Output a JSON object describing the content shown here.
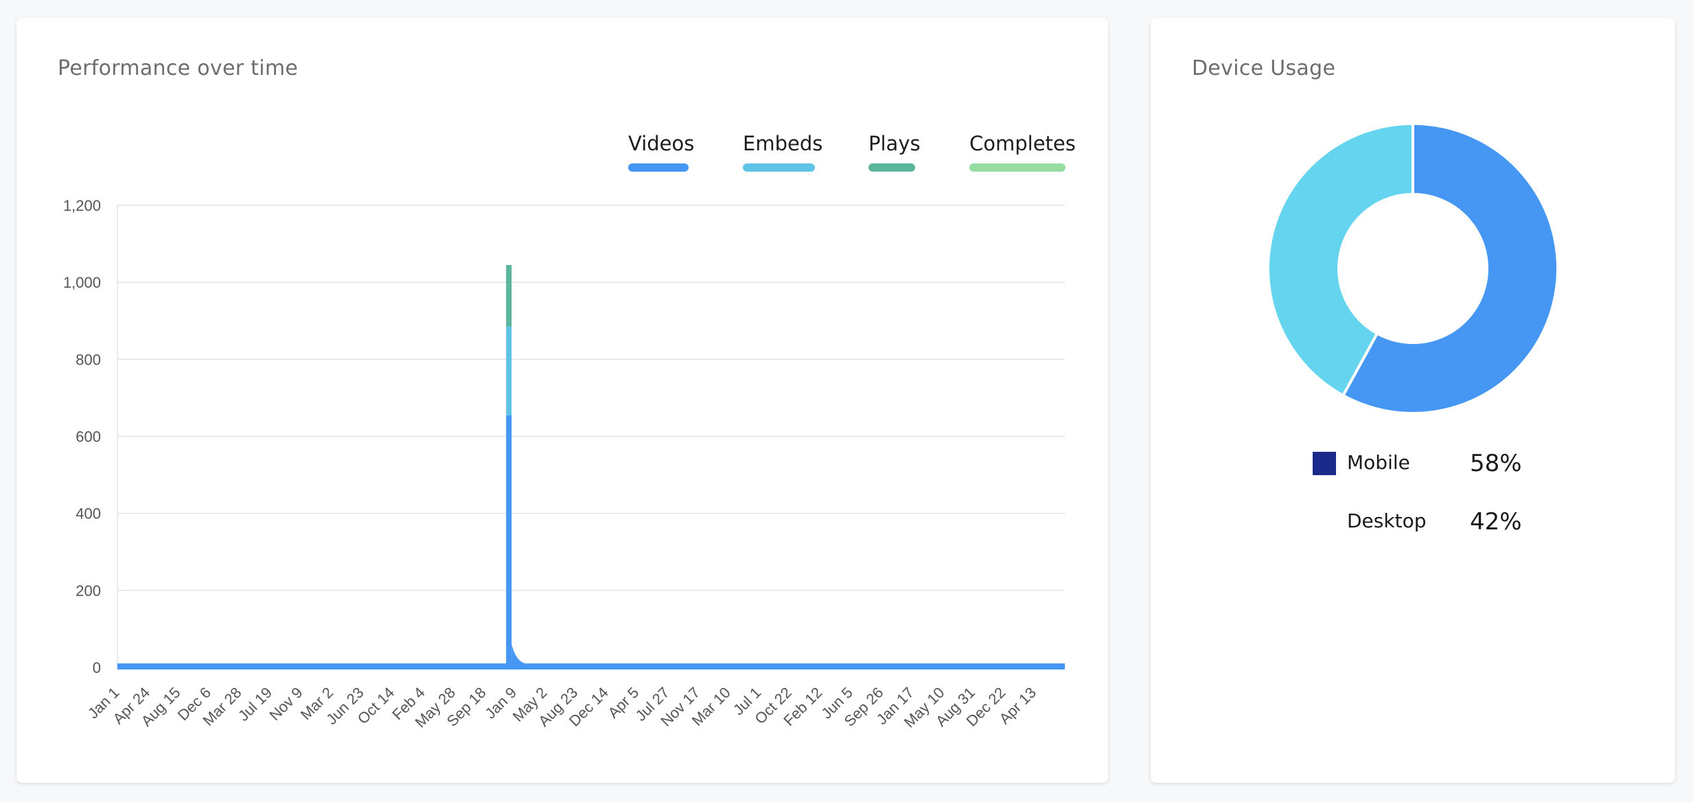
{
  "performance": {
    "title": "Performance over time",
    "legend": [
      {
        "label": "Videos",
        "color": "#4597f3"
      },
      {
        "label": "Embeds",
        "color": "#5ec3e5"
      },
      {
        "label": "Plays",
        "color": "#5bb59a"
      },
      {
        "label": "Completes",
        "color": "#96dca3"
      }
    ]
  },
  "device": {
    "title": "Device Usage",
    "items": [
      {
        "label": "Mobile",
        "value": "58%",
        "color": "#1a2a8a",
        "slice_color": "#4597f3"
      },
      {
        "label": "Desktop",
        "value": "42%",
        "color": "#64d4ef",
        "slice_color": "#64d4ef"
      }
    ]
  },
  "chart_data": [
    {
      "type": "area",
      "stacked": true,
      "title": "Performance over time",
      "x_tick_labels": [
        "Jan 1",
        "Apr 24",
        "Aug 15",
        "Dec 6",
        "Mar 28",
        "Jul 19",
        "Nov 9",
        "Mar 2",
        "Jun 23",
        "Oct 14",
        "Feb 4",
        "May 28",
        "Sep 18",
        "Jan 9",
        "May 2",
        "Aug 23",
        "Dec 14",
        "Apr 5",
        "Jul 27",
        "Nov 17",
        "Mar 10",
        "Jul 1",
        "Oct 22",
        "Feb 12",
        "Jun 5",
        "Sep 26",
        "Jan 17",
        "May 10",
        "Aug 31",
        "Dec 22",
        "Apr 13"
      ],
      "y_ticks": [
        0,
        200,
        400,
        600,
        800,
        1000,
        1200
      ],
      "ylim": [
        0,
        1200
      ],
      "grid": true,
      "legend_position": "top-right",
      "series": [
        {
          "name": "Videos",
          "values": {
            "baseline": 5,
            "spike_x": "Sep 18",
            "spike": 655
          }
        },
        {
          "name": "Embeds",
          "values": {
            "baseline": 0,
            "spike_x": "Sep 18",
            "spike": 230
          }
        },
        {
          "name": "Plays",
          "values": {
            "baseline": 0,
            "spike_x": "Sep 18",
            "spike": 160
          }
        },
        {
          "name": "Completes",
          "values": {
            "baseline": 0,
            "spike_x": "Sep 18",
            "spike": 0
          }
        }
      ]
    },
    {
      "type": "pie",
      "donut": true,
      "title": "Device Usage",
      "categories": [
        "Mobile",
        "Desktop"
      ],
      "values": [
        58,
        42
      ]
    }
  ]
}
